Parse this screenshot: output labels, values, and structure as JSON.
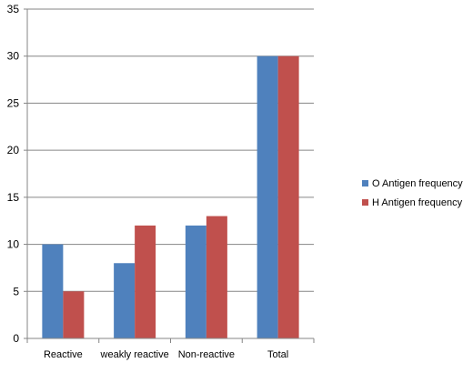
{
  "chart_data": {
    "type": "bar",
    "title": "",
    "xlabel": "",
    "ylabel": "",
    "categories": [
      "Reactive",
      "weakly reactive",
      "Non-reactive",
      "Total"
    ],
    "series": [
      {
        "name": "O Antigen frequency",
        "values": [
          10,
          8,
          12,
          30
        ],
        "color": "#4F81BD"
      },
      {
        "name": "H Antigen frequency",
        "values": [
          5,
          12,
          13,
          30
        ],
        "color": "#C0504D"
      }
    ],
    "ylim": [
      0,
      35
    ],
    "yticks": [
      0,
      5,
      10,
      15,
      20,
      25,
      30,
      35
    ],
    "grid": true,
    "legend": "right"
  }
}
